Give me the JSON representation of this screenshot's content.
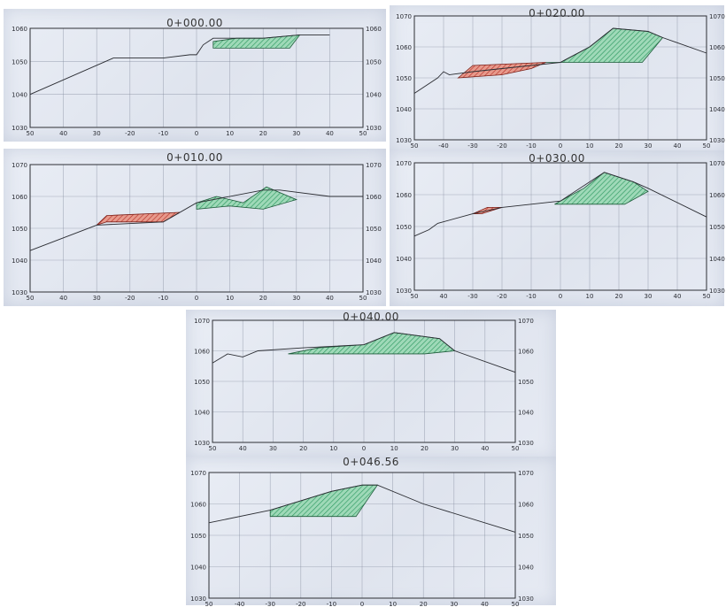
{
  "chart_data": [
    {
      "type": "area",
      "title": "0+000.00",
      "xlim": [
        -50,
        50
      ],
      "ylim": [
        1030,
        1060
      ],
      "xticks": [
        "50",
        "40",
        "30",
        "-20",
        "-10",
        "0",
        "10",
        "20",
        "30",
        "40",
        "50"
      ],
      "yticks": [
        "1030",
        "1040",
        "1050",
        "1060"
      ],
      "ground": [
        [
          -50,
          1040
        ],
        [
          -25,
          1051
        ],
        [
          -10,
          1051
        ],
        [
          -2,
          1052
        ],
        [
          0,
          1052
        ],
        [
          2,
          1055
        ],
        [
          5,
          1057
        ],
        [
          12,
          1057
        ],
        [
          20,
          1057
        ],
        [
          31,
          1058
        ],
        [
          40,
          1058
        ]
      ],
      "fill": [
        [
          5,
          1056
        ],
        [
          12,
          1057
        ],
        [
          20,
          1057
        ],
        [
          31,
          1058
        ],
        [
          28,
          1054
        ],
        [
          5,
          1054
        ]
      ],
      "cut": []
    },
    {
      "type": "area",
      "title": "0+020.00",
      "xlim": [
        -50,
        50
      ],
      "ylim": [
        1030,
        1070
      ],
      "xticks": [
        "50",
        "-40",
        "-30",
        "-20",
        "-10",
        "0",
        "10",
        "20",
        "30",
        "40",
        "50"
      ],
      "yticks": [
        "1030",
        "1040",
        "1050",
        "1060",
        "1070"
      ],
      "ground": [
        [
          -50,
          1045
        ],
        [
          -42,
          1050
        ],
        [
          -40,
          1052
        ],
        [
          -38,
          1051
        ],
        [
          -30,
          1052
        ],
        [
          -20,
          1053
        ],
        [
          -10,
          1054
        ],
        [
          0,
          1055
        ],
        [
          10,
          1060
        ],
        [
          18,
          1066
        ],
        [
          30,
          1065
        ],
        [
          35,
          1063
        ],
        [
          50,
          1058
        ]
      ],
      "fill": [
        [
          -5,
          1055
        ],
        [
          0,
          1055
        ],
        [
          10,
          1060
        ],
        [
          18,
          1066
        ],
        [
          30,
          1065
        ],
        [
          35,
          1063
        ],
        [
          28,
          1055
        ],
        [
          -5,
          1055
        ]
      ],
      "cut": [
        [
          -35,
          1050
        ],
        [
          -30,
          1054
        ],
        [
          -5,
          1055
        ],
        [
          -10,
          1053
        ],
        [
          -20,
          1051
        ],
        [
          -35,
          1050
        ]
      ]
    },
    {
      "type": "area",
      "title": "0+010.00",
      "xlim": [
        -50,
        50
      ],
      "ylim": [
        1030,
        1070
      ],
      "xticks": [
        "50",
        "40",
        "30",
        "-20",
        "-10",
        "0",
        "10",
        "20",
        "30",
        "40",
        "50"
      ],
      "yticks": [
        "1030",
        "1040",
        "1050",
        "1060",
        "1070"
      ],
      "ground": [
        [
          -50,
          1043
        ],
        [
          -30,
          1051
        ],
        [
          -10,
          1052
        ],
        [
          0,
          1058
        ],
        [
          20,
          1062
        ],
        [
          25,
          1062
        ],
        [
          40,
          1060
        ],
        [
          45,
          1060
        ],
        [
          50,
          1060
        ]
      ],
      "fill": [
        [
          0,
          1058
        ],
        [
          6,
          1060
        ],
        [
          14,
          1058
        ],
        [
          21,
          1063
        ],
        [
          30,
          1059
        ],
        [
          20,
          1056
        ],
        [
          10,
          1057
        ],
        [
          0,
          1056
        ]
      ],
      "cut": [
        [
          -30,
          1051
        ],
        [
          -27,
          1054
        ],
        [
          -5,
          1055
        ],
        [
          -10,
          1052
        ],
        [
          -27,
          1052
        ],
        [
          -30,
          1051
        ]
      ]
    },
    {
      "type": "area",
      "title": "0+030.00",
      "xlim": [
        -50,
        50
      ],
      "ylim": [
        1030,
        1070
      ],
      "xticks": [
        "50",
        "40",
        "-30",
        "-20",
        "-10",
        "0",
        "10",
        "20",
        "30",
        "40",
        "50"
      ],
      "yticks": [
        "1030",
        "1040",
        "1050",
        "1060",
        "1070"
      ],
      "ground": [
        [
          -50,
          1047
        ],
        [
          -45,
          1049
        ],
        [
          -42,
          1051
        ],
        [
          -30,
          1054
        ],
        [
          -20,
          1056
        ],
        [
          0,
          1058
        ],
        [
          15,
          1067
        ],
        [
          25,
          1064
        ],
        [
          30,
          1062
        ],
        [
          50,
          1053
        ]
      ],
      "fill": [
        [
          -2,
          1057
        ],
        [
          8,
          1062
        ],
        [
          15,
          1067
        ],
        [
          25,
          1064
        ],
        [
          30,
          1061
        ],
        [
          22,
          1057
        ],
        [
          -2,
          1057
        ]
      ],
      "cut": [
        [
          -30,
          1054
        ],
        [
          -25,
          1056
        ],
        [
          -20,
          1056
        ],
        [
          -27,
          1054
        ],
        [
          -30,
          1054
        ]
      ]
    },
    {
      "type": "area",
      "title": "0+040.00",
      "xlim": [
        -50,
        50
      ],
      "ylim": [
        1030,
        1070
      ],
      "xticks": [
        "50",
        "40",
        "30",
        "20",
        "10",
        "0",
        "10",
        "20",
        "30",
        "40",
        "50"
      ],
      "yticks": [
        "1030",
        "1040",
        "1050",
        "1060",
        "1070"
      ],
      "ground": [
        [
          -50,
          1056
        ],
        [
          -45,
          1059
        ],
        [
          -40,
          1058
        ],
        [
          -35,
          1060
        ],
        [
          -20,
          1061
        ],
        [
          0,
          1062
        ],
        [
          10,
          1066
        ],
        [
          25,
          1064
        ],
        [
          30,
          1060
        ],
        [
          50,
          1053
        ]
      ],
      "fill": [
        [
          -25,
          1059
        ],
        [
          -15,
          1061
        ],
        [
          0,
          1062
        ],
        [
          10,
          1066
        ],
        [
          25,
          1064
        ],
        [
          30,
          1060
        ],
        [
          20,
          1059
        ],
        [
          -25,
          1059
        ]
      ],
      "cut": []
    },
    {
      "type": "area",
      "title": "0+046.56",
      "xlim": [
        -50,
        50
      ],
      "ylim": [
        1030,
        1070
      ],
      "xticks": [
        "50",
        "-40",
        "-30",
        "-20",
        "-10",
        "0",
        "10",
        "20",
        "30",
        "40",
        "50"
      ],
      "yticks": [
        "1030",
        "1040",
        "1050",
        "1060",
        "1070"
      ],
      "ground": [
        [
          -50,
          1054
        ],
        [
          -30,
          1058
        ],
        [
          -10,
          1064
        ],
        [
          0,
          1066
        ],
        [
          5,
          1066
        ],
        [
          20,
          1060
        ],
        [
          50,
          1051
        ]
      ],
      "fill": [
        [
          -30,
          1058
        ],
        [
          -10,
          1064
        ],
        [
          0,
          1066
        ],
        [
          5,
          1066
        ],
        [
          -2,
          1056
        ],
        [
          -30,
          1056
        ]
      ],
      "cut": []
    }
  ]
}
